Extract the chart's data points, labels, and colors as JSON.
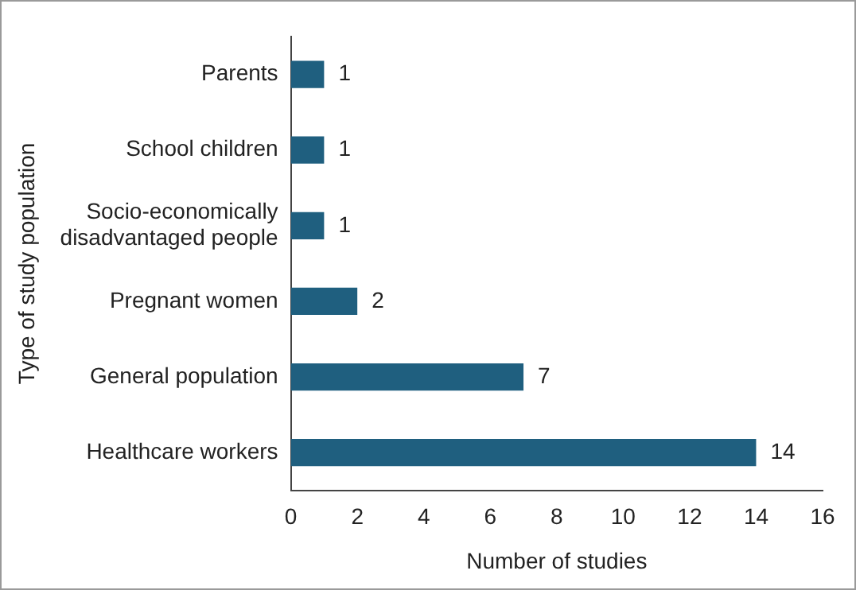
{
  "chart_data": {
    "type": "bar",
    "orientation": "horizontal",
    "xlabel": "Number of studies",
    "ylabel": "Type of study population",
    "categories": [
      "Parents",
      "School children",
      "Socio-economically disadvantaged people",
      "Pregnant women",
      "General population",
      "Healthcare workers"
    ],
    "values": [
      1,
      1,
      1,
      2,
      7,
      14
    ],
    "color": "#1f5f7f",
    "xlim": [
      0,
      16
    ],
    "xticks": [
      0,
      2,
      4,
      6,
      8,
      10,
      12,
      14,
      16
    ],
    "grid": false,
    "legend": false,
    "data_labels": true
  }
}
